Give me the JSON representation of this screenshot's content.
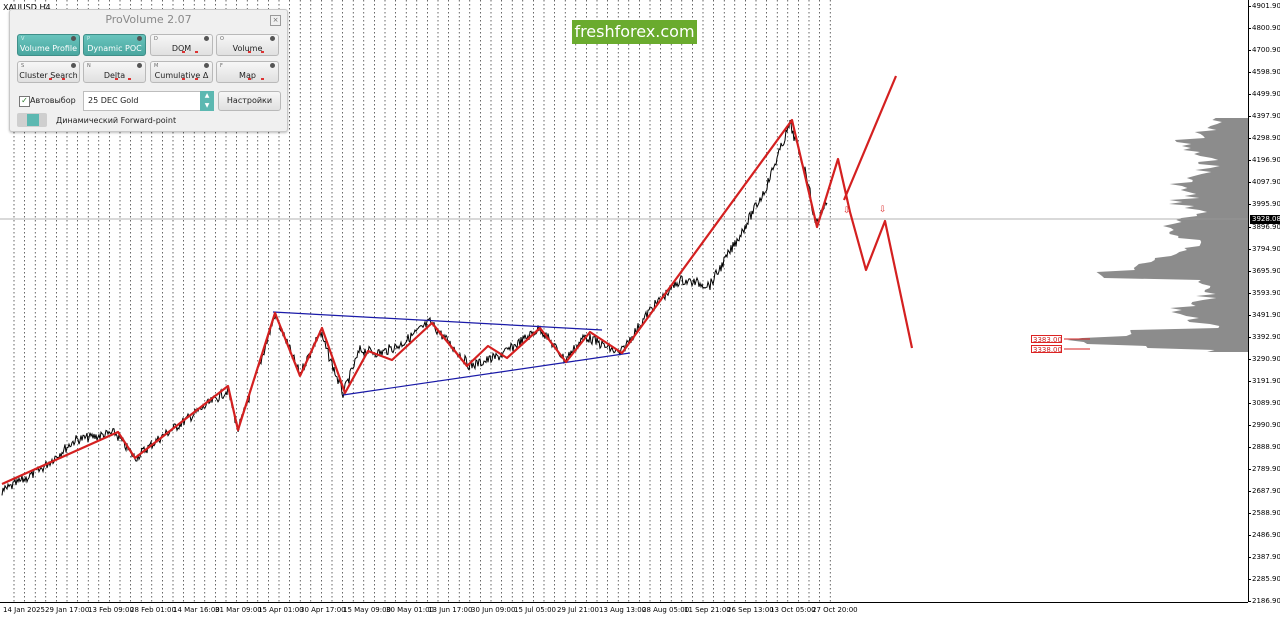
{
  "chart": {
    "symbol_label": "XAUUSD,H4",
    "current_price": "3928.08",
    "brand": "freshforex.com",
    "price_ticks": [
      "4901.90",
      "4800.90",
      "4700.90",
      "4598.90",
      "4499.90",
      "4397.90",
      "4298.90",
      "4196.90",
      "4097.90",
      "3995.90",
      "3896.90",
      "3794.90",
      "3695.90",
      "3593.90",
      "3491.90",
      "3392.90",
      "3290.90",
      "3191.90",
      "3089.90",
      "2990.90",
      "2888.90",
      "2789.90",
      "2687.90",
      "2588.90",
      "2486.90",
      "2387.90",
      "2285.90",
      "2186.90"
    ],
    "time_ticks": [
      "14 Jan 2025",
      "29 Jan 17:00",
      "13 Feb 09:00",
      "28 Feb 01:00",
      "14 Mar 16:00",
      "31 Mar 09:00",
      "15 Apr 01:00",
      "30 Apr 17:00",
      "15 May 09:00",
      "30 May 01:00",
      "13 Jun 17:00",
      "30 Jun 09:00",
      "15 Jul 05:00",
      "29 Jul 21:00",
      "13 Aug 13:00",
      "28 Aug 05:00",
      "11 Sep 21:00",
      "26 Sep 13:00",
      "13 Oct 05:00",
      "27 Oct 20:00"
    ],
    "level_labels": [
      "3383.00",
      "3338.00"
    ],
    "colors": {
      "wave": "#d42020",
      "triangle": "#1a1aa8",
      "price": "#000000",
      "profile": "#8c8c8c",
      "brand": "#6aab2e"
    }
  },
  "panel": {
    "title": "ProVolume 2.07",
    "close_icon": "×",
    "buttons": [
      {
        "label": "Volume Profile",
        "key": "V",
        "active": true
      },
      {
        "label": "Dynamic POC",
        "key": "P",
        "active": true
      },
      {
        "label": "DOM",
        "key": "D",
        "active": false
      },
      {
        "label": "Volume",
        "key": "O",
        "active": false
      },
      {
        "label": "Cluster Search",
        "key": "S",
        "active": false
      },
      {
        "label": "Delta",
        "key": "N",
        "active": false
      },
      {
        "label": "Cumulative Δ",
        "key": "M",
        "active": false
      },
      {
        "label": "Map",
        "key": "F",
        "active": false
      }
    ],
    "auto_select_label": "Автовыбор",
    "auto_select_checked": "✓",
    "symbol_value": "25 DEC Gold",
    "settings_label": "Настройки",
    "forward_point_label": "Динамический Forward-point"
  }
}
